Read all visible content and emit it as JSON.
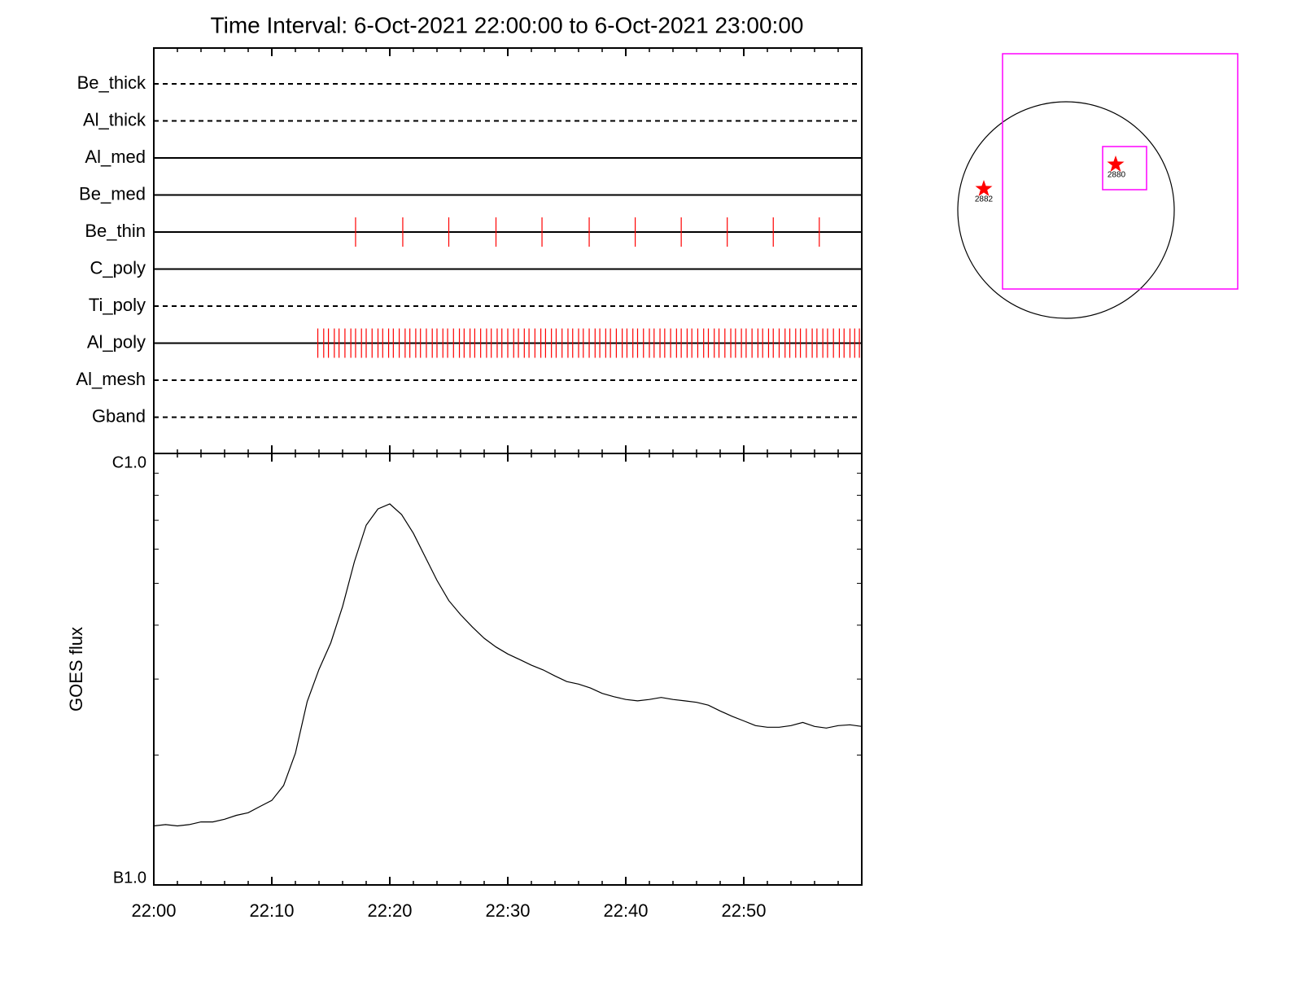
{
  "title": "Time Interval:  6-Oct-2021 22:00:00 to  6-Oct-2021 23:00:00",
  "chart_data": [
    {
      "type": "timeline",
      "xlim": [
        0,
        60
      ],
      "xminor": [
        2,
        4,
        6,
        8,
        12,
        14,
        16,
        18,
        22,
        24,
        26,
        28,
        32,
        34,
        36,
        38,
        42,
        44,
        46,
        48,
        52,
        54,
        56,
        58
      ],
      "xmajor": [
        10,
        20,
        30,
        40,
        50
      ],
      "mark_color": "#ff0000",
      "rows": [
        {
          "name": "Be_thick",
          "style": "dashed",
          "x": []
        },
        {
          "name": "Al_thick",
          "style": "dashed",
          "x": []
        },
        {
          "name": "Al_med",
          "style": "solid",
          "x": []
        },
        {
          "name": "Be_med",
          "style": "solid",
          "x": []
        },
        {
          "name": "Be_thin",
          "style": "solid",
          "x": [
            17.1,
            21.1,
            25.0,
            29.0,
            32.9,
            36.9,
            40.8,
            44.7,
            48.6,
            52.5,
            56.4
          ]
        },
        {
          "name": "C_poly",
          "style": "solid",
          "x": []
        },
        {
          "name": "Ti_poly",
          "style": "dashed",
          "x": []
        },
        {
          "name": "Al_poly",
          "style": "solid",
          "x": [
            13.9,
            14.4,
            14.8,
            15.3,
            15.7,
            16.2,
            16.7,
            17.1,
            17.6,
            18.0,
            18.5,
            19.0,
            19.4,
            19.9,
            20.3,
            20.8,
            21.3,
            21.7,
            22.2,
            22.6,
            23.1,
            23.6,
            24.0,
            24.5,
            24.9,
            25.4,
            25.9,
            26.3,
            26.8,
            27.2,
            27.7,
            28.2,
            28.6,
            29.1,
            29.5,
            30.0,
            30.5,
            30.9,
            31.4,
            31.8,
            32.3,
            32.8,
            33.2,
            33.7,
            34.1,
            34.6,
            35.1,
            35.5,
            36.0,
            36.4,
            36.9,
            37.4,
            37.8,
            38.3,
            38.7,
            39.2,
            39.7,
            40.1,
            40.6,
            41.0,
            41.5,
            42.0,
            42.4,
            42.9,
            43.3,
            43.8,
            44.3,
            44.7,
            45.2,
            45.6,
            46.1,
            46.6,
            47.0,
            47.5,
            47.9,
            48.4,
            48.9,
            49.3,
            49.8,
            50.2,
            50.7,
            51.2,
            51.6,
            52.1,
            52.5,
            53.0,
            53.5,
            53.9,
            54.4,
            54.8,
            55.3,
            55.8,
            56.2,
            56.7,
            57.1,
            57.6,
            58.1,
            58.5,
            59.0,
            59.4,
            59.8
          ]
        },
        {
          "name": "Al_mesh",
          "style": "dashed",
          "x": []
        },
        {
          "name": "Gband",
          "style": "dashed",
          "x": []
        }
      ]
    },
    {
      "type": "line",
      "y_label": "GOES flux",
      "log_y": true,
      "color": "#000000",
      "xlim": [
        0,
        60
      ],
      "xticks": [
        {
          "value": 0,
          "label": "22:00"
        },
        {
          "value": 10,
          "label": "22:10"
        },
        {
          "value": 20,
          "label": "22:20"
        },
        {
          "value": 30,
          "label": "22:30"
        },
        {
          "value": 40,
          "label": "22:40"
        },
        {
          "value": 50,
          "label": "22:50"
        }
      ],
      "xminor": [
        2,
        4,
        6,
        8,
        12,
        14,
        16,
        18,
        22,
        24,
        26,
        28,
        32,
        34,
        36,
        38,
        42,
        44,
        46,
        48,
        52,
        54,
        56,
        58
      ],
      "ylim": [
        1e-07,
        1e-06
      ],
      "yticks": [
        {
          "value": 1e-07,
          "label": "B1.0"
        },
        {
          "value": 1e-06,
          "label": "C1.0"
        }
      ],
      "yminor": [
        2e-07,
        3e-07,
        4e-07,
        5e-07,
        6e-07,
        7e-07,
        8e-07,
        9e-07
      ],
      "x": [
        0,
        1,
        2,
        3,
        4,
        5,
        6,
        7,
        8,
        9,
        10,
        11,
        12,
        13,
        14,
        15,
        16,
        17,
        18,
        19,
        20,
        21,
        22,
        23,
        24,
        25,
        26,
        27,
        28,
        29,
        30,
        31,
        32,
        33,
        34,
        35,
        36,
        37,
        38,
        39,
        40,
        41,
        42,
        43,
        44,
        45,
        46,
        47,
        48,
        49,
        50,
        51,
        52,
        53,
        54,
        55,
        56,
        57,
        58,
        59,
        60
      ],
      "values": [
        1.37e-07,
        1.38e-07,
        1.37e-07,
        1.38e-07,
        1.4e-07,
        1.4e-07,
        1.42e-07,
        1.45e-07,
        1.47e-07,
        1.52e-07,
        1.57e-07,
        1.7e-07,
        2.02e-07,
        2.66e-07,
        3.16e-07,
        3.64e-07,
        4.42e-07,
        5.61e-07,
        6.82e-07,
        7.44e-07,
        7.64e-07,
        7.22e-07,
        6.53e-07,
        5.76e-07,
        5.08e-07,
        4.56e-07,
        4.23e-07,
        3.96e-07,
        3.73e-07,
        3.56e-07,
        3.43e-07,
        3.33e-07,
        3.23e-07,
        3.15e-07,
        3.05e-07,
        2.96e-07,
        2.92e-07,
        2.86e-07,
        2.78e-07,
        2.73e-07,
        2.69e-07,
        2.67e-07,
        2.69e-07,
        2.72e-07,
        2.69e-07,
        2.67e-07,
        2.65e-07,
        2.61e-07,
        2.53e-07,
        2.46e-07,
        2.4e-07,
        2.34e-07,
        2.32e-07,
        2.32e-07,
        2.34e-07,
        2.38e-07,
        2.33e-07,
        2.31e-07,
        2.34e-07,
        2.35e-07,
        2.33e-07
      ]
    }
  ],
  "map": {
    "regions": [
      {
        "label": "2880"
      },
      {
        "label": "2882"
      }
    ]
  }
}
